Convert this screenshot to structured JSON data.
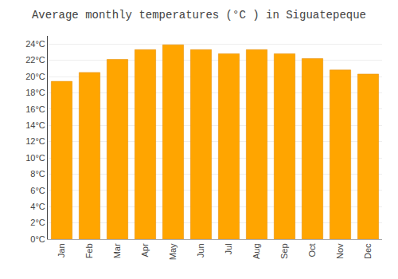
{
  "chart_data": {
    "type": "bar",
    "title": "Average monthly temperatures (°C ) in Siguatepeque",
    "categories": [
      "Jan",
      "Feb",
      "Mar",
      "Apr",
      "May",
      "Jun",
      "Jul",
      "Aug",
      "Sep",
      "Oct",
      "Nov",
      "Dec"
    ],
    "values": [
      19.4,
      20.5,
      22.1,
      23.3,
      23.9,
      23.3,
      22.8,
      23.3,
      22.8,
      22.2,
      20.8,
      20.3
    ],
    "color": "#FFA500",
    "ylim": [
      0,
      25
    ],
    "yticks": [
      {
        "value": 0,
        "label": "0°C"
      },
      {
        "value": 2,
        "label": "2°C"
      },
      {
        "value": 4,
        "label": "4°C"
      },
      {
        "value": 6,
        "label": "6°C"
      },
      {
        "value": 8,
        "label": "8°C"
      },
      {
        "value": 10,
        "label": "10°C"
      },
      {
        "value": 12,
        "label": "12°C"
      },
      {
        "value": 14,
        "label": "14°C"
      },
      {
        "value": 16,
        "label": "16°C"
      },
      {
        "value": 18,
        "label": "18°C"
      },
      {
        "value": 20,
        "label": "20°C"
      },
      {
        "value": 22,
        "label": "22°C"
      },
      {
        "value": 24,
        "label": "24°C"
      }
    ],
    "grid": true
  }
}
